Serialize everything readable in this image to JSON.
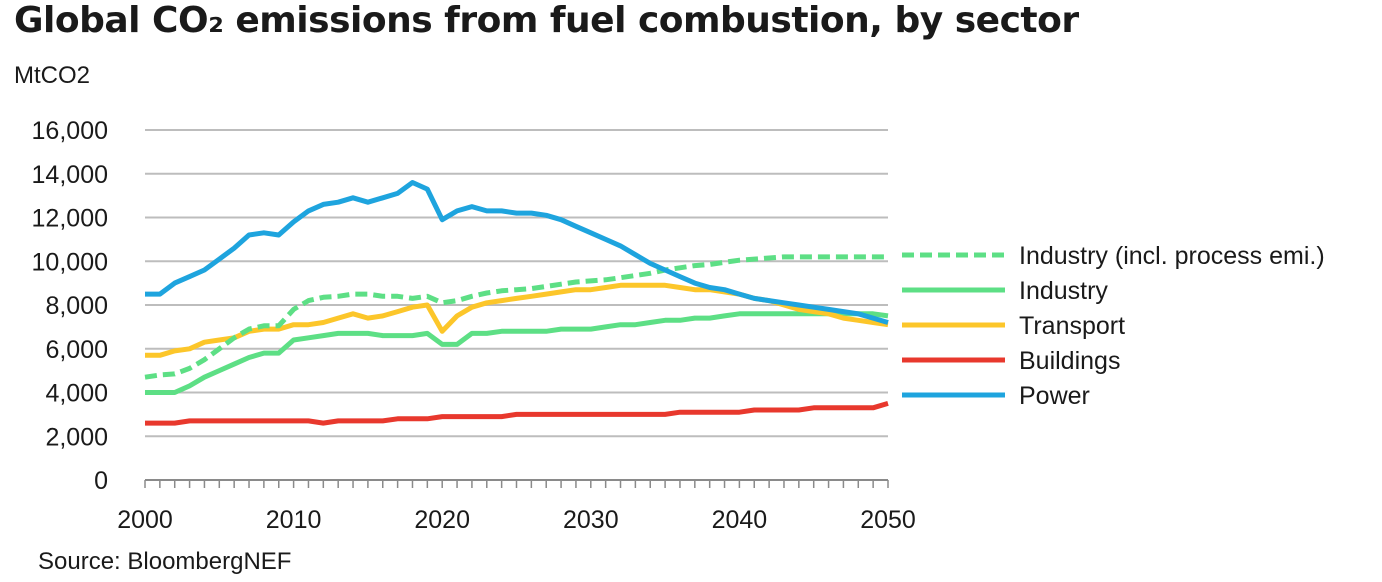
{
  "title": "Global CO₂ emissions from fuel combustion, by sector",
  "unit_label": "MtCO2",
  "source": "Source: BloombergNEF",
  "chart_data": {
    "type": "line",
    "title": "Global CO₂ emissions from fuel combustion, by sector",
    "ylabel": "MtCO2",
    "xlabel": "",
    "xlim": [
      2000,
      2050
    ],
    "ylim": [
      0,
      16000
    ],
    "x_ticks": [
      "2000",
      "2010",
      "2020",
      "2030",
      "2040",
      "2050"
    ],
    "y_ticks": [
      "0",
      "2,000",
      "4,000",
      "6,000",
      "8,000",
      "10,000",
      "12,000",
      "14,000",
      "16,000"
    ],
    "grid": "horizontal",
    "legend_position": "right",
    "x": [
      2000,
      2001,
      2002,
      2003,
      2004,
      2005,
      2006,
      2007,
      2008,
      2009,
      2010,
      2011,
      2012,
      2013,
      2014,
      2015,
      2016,
      2017,
      2018,
      2019,
      2020,
      2021,
      2022,
      2023,
      2024,
      2025,
      2026,
      2027,
      2028,
      2029,
      2030,
      2031,
      2032,
      2033,
      2034,
      2035,
      2036,
      2037,
      2038,
      2039,
      2040,
      2041,
      2042,
      2043,
      2044,
      2045,
      2046,
      2047,
      2048,
      2049,
      2050
    ],
    "series": [
      {
        "name": "Industry (incl. process emi.)",
        "color": "#5ddf85",
        "dashed": true,
        "values": [
          4700,
          4800,
          4850,
          5100,
          5500,
          6000,
          6500,
          6900,
          7050,
          7050,
          7800,
          8200,
          8350,
          8400,
          8500,
          8500,
          8400,
          8400,
          8300,
          8400,
          8100,
          8200,
          8400,
          8550,
          8650,
          8700,
          8750,
          8850,
          8950,
          9050,
          9100,
          9150,
          9250,
          9350,
          9450,
          9600,
          9700,
          9800,
          9850,
          9950,
          10050,
          10100,
          10150,
          10200,
          10200,
          10200,
          10200,
          10200,
          10200,
          10200,
          10200
        ]
      },
      {
        "name": "Industry",
        "color": "#5ddf85",
        "dashed": false,
        "values": [
          4000,
          4000,
          4000,
          4300,
          4700,
          5000,
          5300,
          5600,
          5800,
          5800,
          6400,
          6500,
          6600,
          6700,
          6700,
          6700,
          6600,
          6600,
          6600,
          6700,
          6200,
          6200,
          6700,
          6700,
          6800,
          6800,
          6800,
          6800,
          6900,
          6900,
          6900,
          7000,
          7100,
          7100,
          7200,
          7300,
          7300,
          7400,
          7400,
          7500,
          7600,
          7600,
          7600,
          7600,
          7600,
          7600,
          7600,
          7600,
          7600,
          7600,
          7500
        ]
      },
      {
        "name": "Transport",
        "color": "#fcc62a",
        "dashed": false,
        "values": [
          5700,
          5700,
          5900,
          6000,
          6300,
          6400,
          6500,
          6800,
          6900,
          6900,
          7100,
          7100,
          7200,
          7400,
          7600,
          7400,
          7500,
          7700,
          7900,
          8000,
          6800,
          7500,
          7900,
          8100,
          8200,
          8300,
          8400,
          8500,
          8600,
          8700,
          8700,
          8800,
          8900,
          8900,
          8900,
          8900,
          8800,
          8700,
          8700,
          8600,
          8500,
          8300,
          8200,
          8000,
          7800,
          7700,
          7600,
          7400,
          7300,
          7200,
          7100
        ]
      },
      {
        "name": "Buildings",
        "color": "#e8382d",
        "dashed": false,
        "values": [
          2600,
          2600,
          2600,
          2700,
          2700,
          2700,
          2700,
          2700,
          2700,
          2700,
          2700,
          2700,
          2600,
          2700,
          2700,
          2700,
          2700,
          2800,
          2800,
          2800,
          2900,
          2900,
          2900,
          2900,
          2900,
          3000,
          3000,
          3000,
          3000,
          3000,
          3000,
          3000,
          3000,
          3000,
          3000,
          3000,
          3100,
          3100,
          3100,
          3100,
          3100,
          3200,
          3200,
          3200,
          3200,
          3300,
          3300,
          3300,
          3300,
          3300,
          3500
        ]
      },
      {
        "name": "Power",
        "color": "#1ea4de",
        "dashed": false,
        "values": [
          8500,
          8500,
          9000,
          9300,
          9600,
          10100,
          10600,
          11200,
          11300,
          11200,
          11800,
          12300,
          12600,
          12700,
          12900,
          12700,
          12900,
          13100,
          13600,
          13300,
          11900,
          12300,
          12500,
          12300,
          12300,
          12200,
          12200,
          12100,
          11900,
          11600,
          11300,
          11000,
          10700,
          10300,
          9900,
          9600,
          9300,
          9000,
          8800,
          8700,
          8500,
          8300,
          8200,
          8100,
          8000,
          7900,
          7800,
          7700,
          7600,
          7400,
          7200
        ]
      }
    ]
  }
}
